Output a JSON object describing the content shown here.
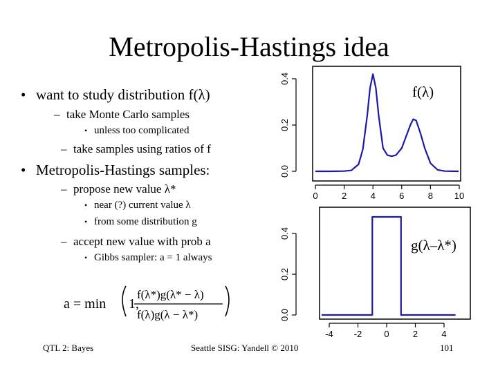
{
  "slide": {
    "title": "Metropolis-Hastings idea",
    "bullets": [
      {
        "level": 1,
        "text": "want to study distribution f(λ)"
      },
      {
        "level": 2,
        "text": "take Monte Carlo samples"
      },
      {
        "level": 3,
        "text": "unless too complicated"
      },
      {
        "level": 2,
        "text": "take samples using ratios of f"
      },
      {
        "level": 1,
        "text": "Metropolis-Hastings samples:"
      },
      {
        "level": 2,
        "text": "propose new value λ*"
      },
      {
        "level": 3,
        "text": "near (?) current value λ"
      },
      {
        "level": 3,
        "text": "from some distribution g"
      },
      {
        "level": 2,
        "text": "accept new value with prob a"
      },
      {
        "level": 3,
        "text": "Gibbs sampler: a = 1 always"
      }
    ],
    "formula": {
      "lhs": "a = min",
      "one": "1,",
      "numerator": "f(λ*)g(λ* − λ)",
      "denominator": "f(λ)g(λ − λ*)"
    },
    "footer": {
      "left": "QTL 2: Bayes",
      "center": "Seattle SISG: Yandell © 2010",
      "right": "101"
    }
  },
  "chart_data": [
    {
      "type": "line",
      "label": "f(λ)",
      "color": "#1a1aa6",
      "xticks": [
        0,
        2,
        4,
        6,
        8,
        10
      ],
      "yticks": [
        0.0,
        0.2,
        0.4
      ],
      "xlim": [
        0,
        10
      ],
      "ylim": [
        0,
        0.46
      ],
      "x": [
        0,
        1,
        2,
        2.5,
        3,
        3.3,
        3.6,
        3.8,
        4,
        4.2,
        4.4,
        4.7,
        5,
        5.3,
        5.6,
        6,
        6.3,
        6.6,
        6.8,
        7,
        7.3,
        7.6,
        8,
        8.5,
        9,
        10
      ],
      "y": [
        0,
        0,
        0.001,
        0.004,
        0.03,
        0.095,
        0.24,
        0.36,
        0.42,
        0.36,
        0.24,
        0.1,
        0.07,
        0.065,
        0.07,
        0.1,
        0.15,
        0.2,
        0.225,
        0.22,
        0.165,
        0.1,
        0.035,
        0.006,
        0.001,
        0
      ]
    },
    {
      "type": "line",
      "label": "g(λ–λ*)",
      "color": "#1a1aa6",
      "xticks": [
        -4,
        -2,
        0,
        2,
        4
      ],
      "yticks": [
        0.0,
        0.2,
        0.4
      ],
      "xlim": [
        -4.8,
        4.8
      ],
      "ylim": [
        0,
        0.5
      ],
      "x": [
        -4.8,
        -1,
        -1,
        1,
        1,
        4.8
      ],
      "y": [
        0,
        0,
        0.5,
        0.5,
        0,
        0
      ]
    }
  ]
}
